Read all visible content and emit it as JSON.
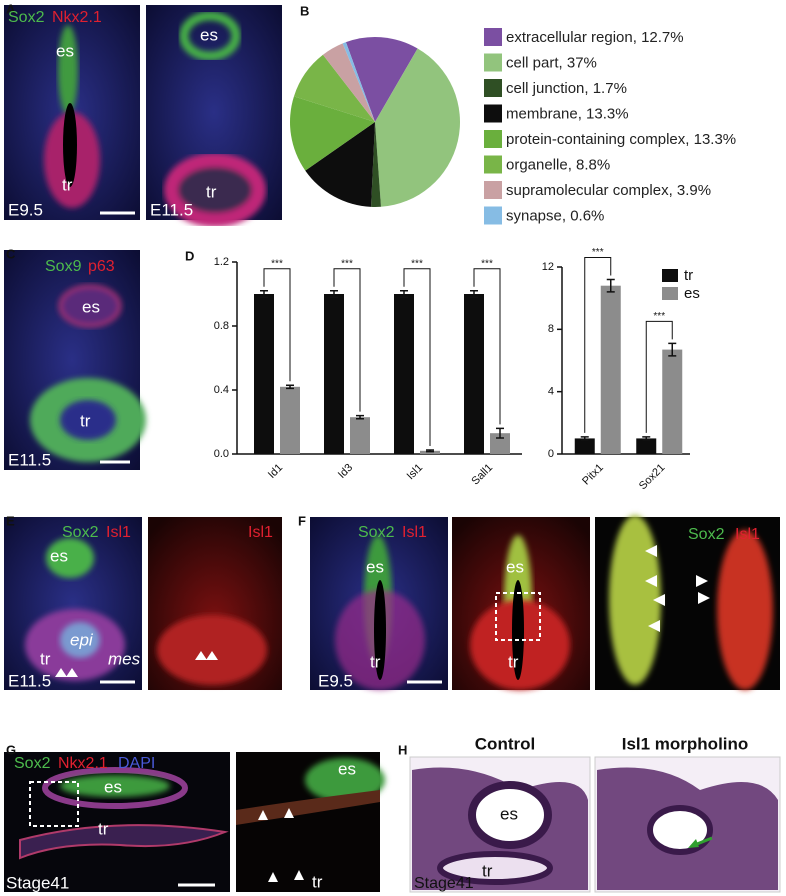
{
  "panel_labels": [
    "A",
    "B",
    "C",
    "D",
    "E",
    "F",
    "G",
    "H"
  ],
  "panels": {
    "A": [
      "Sox2",
      "Nkx2.1",
      "es",
      "tr",
      "E9.5",
      "es",
      "tr",
      "E11.5"
    ],
    "C": [
      "Sox9",
      "p63",
      "es",
      "tr",
      "E11.5"
    ],
    "E": [
      "Sox2",
      "Isl1",
      "es",
      "epi",
      "tr",
      "mes",
      "E11.5",
      "Isl1"
    ],
    "F": [
      "Sox2",
      "Isl1",
      "es",
      "tr",
      "E9.5",
      "es",
      "tr",
      "Sox2",
      "Isl1"
    ],
    "G": [
      "Sox2",
      "Nkx2.1",
      "DAPI",
      "es",
      "tr",
      "Stage41",
      "es",
      "tr"
    ],
    "H": [
      "Control",
      "Isl1 morpholino",
      "es",
      "tr",
      "Stage41"
    ]
  },
  "chart_data": [
    {
      "type": "pie",
      "categories": [
        "extracellular region, 12.7%",
        "cell part, 37%",
        "cell junction, 1.7%",
        "membrane, 13.3%",
        "protein-containing complex, 13.3%",
        "organelle, 8.8%",
        "supramolecular complex, 3.9%",
        "synapse, 0.6%"
      ],
      "values": [
        12.7,
        37,
        1.7,
        13.3,
        13.3,
        8.8,
        3.9,
        0.6
      ],
      "colors": [
        "#7b4fa2",
        "#92c47d",
        "#2f4f24",
        "#0d0d0d",
        "#6aaf3d",
        "#79b548",
        "#c9a1a3",
        "#86bce4"
      ]
    },
    {
      "type": "bar",
      "categories": [
        "Id1",
        "Id3",
        "Isl1",
        "Sall1"
      ],
      "series": [
        {
          "color": "#0d0d0d",
          "values": [
            1.0,
            1.0,
            1.0,
            1.0
          ],
          "errors": [
            0.02,
            0.02,
            0.02,
            0.02
          ]
        },
        {
          "color": "#8c8c8c",
          "values": [
            0.42,
            0.23,
            0.02,
            0.13
          ],
          "errors": [
            0.01,
            0.01,
            0.005,
            0.03
          ]
        }
      ],
      "annotations": [
        "***",
        "***",
        "***",
        "***"
      ],
      "ylim": [
        0,
        1.2
      ],
      "yticks": [
        {
          "value": 0,
          "label": "0.0"
        },
        0.4,
        0.8,
        1.2
      ]
    },
    {
      "type": "bar",
      "categories": [
        "Pitx1",
        "Sox21"
      ],
      "series": [
        {
          "name": "tr",
          "color": "#0d0d0d",
          "values": [
            1.0,
            1.0
          ],
          "errors": [
            0.1,
            0.1
          ]
        },
        {
          "name": "es",
          "color": "#8c8c8c",
          "values": [
            10.8,
            6.7
          ],
          "errors": [
            0.4,
            0.4
          ]
        }
      ],
      "annotations": [
        "***",
        "***"
      ],
      "ylim": [
        0,
        12
      ],
      "yticks": [
        0,
        4,
        8,
        12
      ],
      "legend": "upper right"
    }
  ]
}
